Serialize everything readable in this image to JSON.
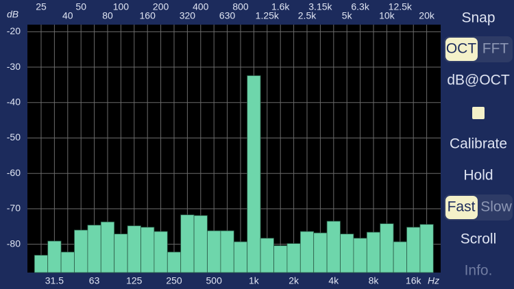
{
  "chart_data": {
    "type": "bar",
    "categories": [
      "25",
      "31.5",
      "40",
      "50",
      "63",
      "80",
      "100",
      "125",
      "160",
      "200",
      "250",
      "320",
      "400",
      "500",
      "630",
      "800",
      "1k",
      "1.25k",
      "1.6k",
      "2k",
      "2.5k",
      "3.15k",
      "4k",
      "5k",
      "6.3k",
      "8k",
      "10k",
      "12.5k",
      "16k",
      "20k"
    ],
    "values": [
      -83.1,
      -79.1,
      -82.2,
      -76.0,
      -74.6,
      -73.7,
      -77.1,
      -74.8,
      -75.2,
      -76.4,
      -82.2,
      -71.7,
      -71.9,
      -76.2,
      -76.2,
      -79.3,
      -32.4,
      -78.3,
      -80.4,
      -79.8,
      -76.4,
      -76.8,
      -73.5,
      -77.1,
      -78.3,
      -76.6,
      -74.2,
      -79.3,
      -75.2,
      -74.4
    ],
    "color": "#6ed6ab",
    "ylim": [
      -88,
      -18
    ],
    "yticks": [
      -20,
      -30,
      -40,
      -50,
      -60,
      -70,
      -80
    ],
    "y_label": "dB",
    "x_label": "Hz",
    "grid": true
  },
  "sidebar": {
    "snap": "Snap",
    "mode_toggle": [
      "OCT",
      "FFT"
    ],
    "weighting": "dB@OCT",
    "calibrate": "Calibrate",
    "hold": "Hold",
    "speed_toggle": [
      "Fast",
      "Slow"
    ],
    "scroll": "Scroll",
    "info": "Info."
  }
}
